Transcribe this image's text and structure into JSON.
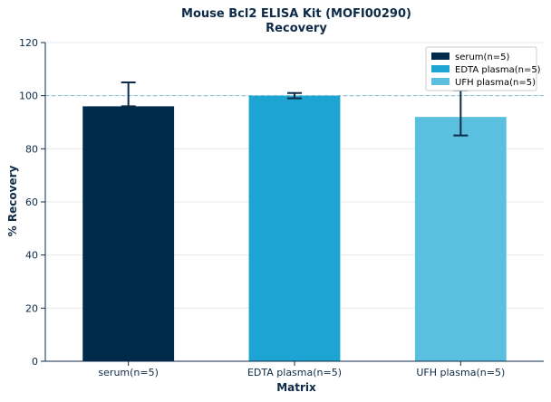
{
  "chart_data": {
    "type": "bar",
    "title": "Mouse Bcl2 ELISA Kit (MOFI00290)",
    "subtitle": "Recovery",
    "xlabel": "Matrix",
    "ylabel": "% Recovery",
    "ylim": [
      0,
      120
    ],
    "yticks": [
      0,
      20,
      40,
      60,
      80,
      100,
      120
    ],
    "categories": [
      "serum(n=5)",
      "EDTA plasma(n=5)",
      "UFH plasma(n=5)"
    ],
    "values": [
      96,
      100,
      92
    ],
    "error_low": [
      96,
      99,
      85
    ],
    "error_high": [
      105,
      101,
      102
    ],
    "colors": [
      "#002a4a",
      "#1ea4d2",
      "#5bbfe0"
    ],
    "error_color": "#0d2a47",
    "reference_line": 100,
    "reference_color": "#7fc3d6",
    "grid": true,
    "legend": {
      "position": "top-right",
      "entries": [
        "serum(n=5)",
        "EDTA plasma(n=5)",
        "UFH plasma(n=5)"
      ]
    }
  }
}
